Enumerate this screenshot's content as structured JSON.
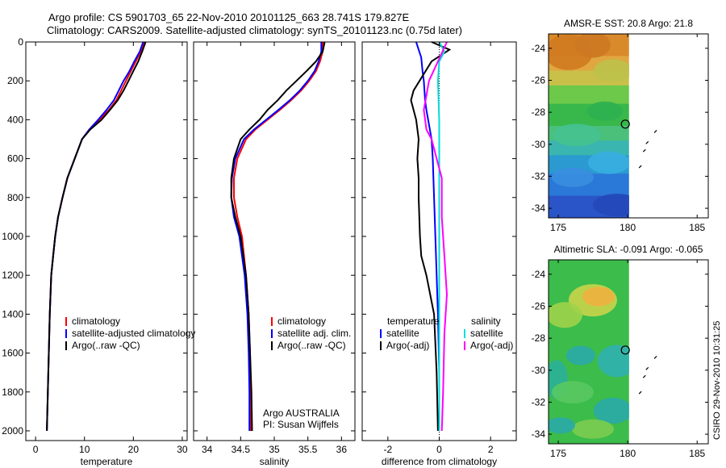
{
  "header": {
    "line1": "Argo profile: CS 5901703_65 22-Nov-2010 20101125_663 28.741S 179.827E",
    "line2": "Climatology: CARS2009. Satellite-adjusted climatology: synTS_20101123.nc (0.75d later)"
  },
  "side_label": "CSIRO  29-Nov-2010 10:31:25",
  "chart_data": [
    {
      "type": "line",
      "xlabel": "temperature",
      "xlim": [
        -2,
        31
      ],
      "ylim": [
        2050,
        0
      ],
      "xticks": [
        0,
        10,
        20,
        30
      ],
      "yticks": [
        0,
        200,
        400,
        600,
        800,
        1000,
        1200,
        1400,
        1600,
        1800,
        2000
      ],
      "legend": [
        "climatology",
        "satellite-adjusted climatology",
        "Argo(..raw -QC)"
      ],
      "series": [
        {
          "name": "climatology",
          "color": "#ff0000",
          "x": [
            22.2,
            21.5,
            20.5,
            19.5,
            18.5,
            17.5,
            16.5,
            15.0,
            13.0,
            11.0,
            9.5,
            8.0,
            6.5,
            5.5,
            4.6,
            4.0,
            3.6,
            3.2,
            2.9,
            2.7,
            2.5,
            2.4,
            2.3
          ],
          "y": [
            0,
            50,
            100,
            150,
            200,
            250,
            300,
            350,
            400,
            450,
            500,
            600,
            700,
            800,
            900,
            1000,
            1100,
            1200,
            1400,
            1600,
            1800,
            1900,
            2000
          ]
        },
        {
          "name": "satellite-adjusted climatology",
          "color": "#0000ff",
          "x": [
            22.0,
            21.3,
            20.2,
            19.2,
            18.0,
            17.0,
            16.0,
            14.5,
            12.8,
            11.0,
            9.5,
            8.0,
            6.5,
            5.5,
            4.6,
            4.0,
            3.6,
            3.2,
            2.9,
            2.7,
            2.5,
            2.4,
            2.3
          ],
          "y": [
            0,
            50,
            100,
            150,
            200,
            250,
            300,
            350,
            400,
            450,
            500,
            600,
            700,
            800,
            900,
            1000,
            1100,
            1200,
            1400,
            1600,
            1800,
            1900,
            2000
          ]
        },
        {
          "name": "Argo(..raw -QC)",
          "color": "#000000",
          "x": [
            22.5,
            21.8,
            21.0,
            20.0,
            19.0,
            18.0,
            16.8,
            15.2,
            13.5,
            11.2,
            9.5,
            8.0,
            6.5,
            5.5,
            4.6,
            4.0,
            3.6,
            3.2,
            2.9,
            2.7,
            2.5,
            2.4,
            2.3
          ],
          "y": [
            0,
            50,
            100,
            150,
            200,
            250,
            300,
            350,
            400,
            450,
            500,
            600,
            700,
            800,
            900,
            1000,
            1100,
            1200,
            1400,
            1600,
            1800,
            1900,
            2000
          ]
        }
      ]
    },
    {
      "type": "line",
      "xlabel": "salinity",
      "xlim": [
        33.8,
        36.2
      ],
      "ylim": [
        2050,
        0
      ],
      "xticks": [
        34,
        34.5,
        35,
        35.5,
        36
      ],
      "legend": [
        "climatology",
        "satellite adj. clim.",
        "Argo(..raw -QC)"
      ],
      "annotation": [
        "Argo AUSTRALIA",
        "PI: Susan Wijffels"
      ],
      "series": [
        {
          "name": "climatology",
          "color": "#ff0000",
          "x": [
            35.72,
            35.72,
            35.68,
            35.62,
            35.52,
            35.4,
            35.25,
            35.08,
            34.9,
            34.72,
            34.58,
            34.45,
            34.4,
            34.4,
            34.45,
            34.52,
            34.58,
            34.62,
            34.64,
            34.65,
            34.65
          ],
          "y": [
            0,
            50,
            100,
            150,
            200,
            250,
            300,
            350,
            400,
            450,
            500,
            600,
            700,
            800,
            900,
            1000,
            1200,
            1400,
            1600,
            1800,
            2000
          ]
        },
        {
          "name": "satellite adj. clim.",
          "color": "#0000ff",
          "x": [
            35.7,
            35.7,
            35.66,
            35.6,
            35.5,
            35.38,
            35.23,
            35.06,
            34.88,
            34.7,
            34.55,
            34.42,
            34.37,
            34.36,
            34.4,
            34.48,
            34.56,
            34.6,
            34.62,
            34.63,
            34.63
          ],
          "y": [
            0,
            50,
            100,
            150,
            200,
            250,
            300,
            350,
            400,
            450,
            500,
            600,
            700,
            800,
            900,
            1000,
            1200,
            1400,
            1600,
            1800,
            2000
          ]
        },
        {
          "name": "Argo(..raw -QC)",
          "color": "#000000",
          "x": [
            35.75,
            35.72,
            35.62,
            35.48,
            35.33,
            35.18,
            35.05,
            34.9,
            34.78,
            34.63,
            34.5,
            34.4,
            34.36,
            34.36,
            34.42,
            34.5,
            34.58,
            34.62,
            34.64,
            34.66,
            34.67
          ],
          "y": [
            0,
            50,
            100,
            150,
            200,
            250,
            300,
            350,
            400,
            450,
            500,
            600,
            700,
            800,
            900,
            1000,
            1200,
            1400,
            1600,
            1800,
            2000
          ]
        }
      ]
    },
    {
      "type": "line",
      "xlabel": "difference from climatology",
      "xlim": [
        -3,
        3
      ],
      "ylim": [
        2050,
        0
      ],
      "xticks": [
        -2,
        0,
        2
      ],
      "legend": [
        "temperature",
        "satellite",
        "Argo(-adj)",
        "salinity",
        "satellite",
        "Argo(-adj)"
      ],
      "series": [
        {
          "name": "temperature satellite",
          "color": "#0000ff",
          "x": [
            -0.9,
            -0.8,
            -0.7,
            -0.65,
            -0.6,
            -0.55,
            -0.5,
            -0.3,
            -0.25,
            -0.2,
            -0.15,
            -0.1,
            -0.05,
            0.0,
            0.0
          ],
          "y": [
            0,
            40,
            80,
            150,
            200,
            300,
            350,
            500,
            600,
            800,
            1000,
            1200,
            1400,
            1700,
            2000
          ]
        },
        {
          "name": "temperature Argo(-adj)",
          "color": "#000000",
          "x": [
            -0.3,
            0.4,
            -0.3,
            -1.0,
            -1.1,
            -0.9,
            -0.8,
            -0.85,
            -0.8,
            -0.8,
            -0.75,
            -0.7,
            -0.5,
            -0.2,
            -0.1,
            -0.05
          ],
          "y": [
            0,
            40,
            100,
            250,
            300,
            400,
            500,
            600,
            700,
            800,
            1000,
            1100,
            1200,
            1400,
            1700,
            2000
          ]
        },
        {
          "name": "salinity satellite",
          "color": "#00dddd",
          "x": [
            0.0,
            0.2,
            0.0,
            -0.05,
            0.0,
            0.0,
            0.0,
            0.0,
            0.0,
            0.0
          ],
          "y": [
            0,
            50,
            100,
            200,
            400,
            600,
            800,
            1200,
            1600,
            2000
          ]
        },
        {
          "name": "salinity Argo(-adj)",
          "color": "#ff00ff",
          "x": [
            0.3,
            -0.4,
            -0.6,
            -0.5,
            -0.3,
            -0.1,
            0.1,
            0.1,
            0.2,
            0.3,
            0.2,
            0.15,
            0.1
          ],
          "y": [
            0,
            200,
            350,
            450,
            500,
            600,
            700,
            900,
            1100,
            1300,
            1500,
            1800,
            2000
          ]
        }
      ]
    },
    {
      "type": "heatmap",
      "title": "AMSR-E SST: 20.8  Argo: 21.8",
      "xlim": [
        174.3,
        185.8
      ],
      "ylim": [
        -34.6,
        -23.1
      ],
      "xticks": [
        175,
        180,
        185
      ],
      "yticks": [
        -24,
        -26,
        -28,
        -30,
        -32,
        -34
      ],
      "data_extent": [
        174.3,
        180.1
      ],
      "profile_location": [
        179.83,
        -28.74
      ],
      "track": [
        [
          182.0,
          -29.2
        ],
        [
          181.4,
          -29.9
        ],
        [
          181.2,
          -30.4
        ],
        [
          180.9,
          -31.4
        ]
      ]
    },
    {
      "type": "heatmap",
      "title": "Altimetric SLA: -0.091  Argo: -0.065",
      "xlim": [
        174.3,
        185.8
      ],
      "ylim": [
        -34.6,
        -23.1
      ],
      "xticks": [
        175,
        180,
        185
      ],
      "yticks": [
        -24,
        -26,
        -28,
        -30,
        -32,
        -34
      ],
      "data_extent": [
        174.3,
        180.1
      ],
      "profile_location": [
        179.83,
        -28.74
      ],
      "track": [
        [
          182.0,
          -29.2
        ],
        [
          181.4,
          -29.9
        ],
        [
          181.2,
          -30.4
        ],
        [
          180.9,
          -31.4
        ]
      ]
    }
  ]
}
